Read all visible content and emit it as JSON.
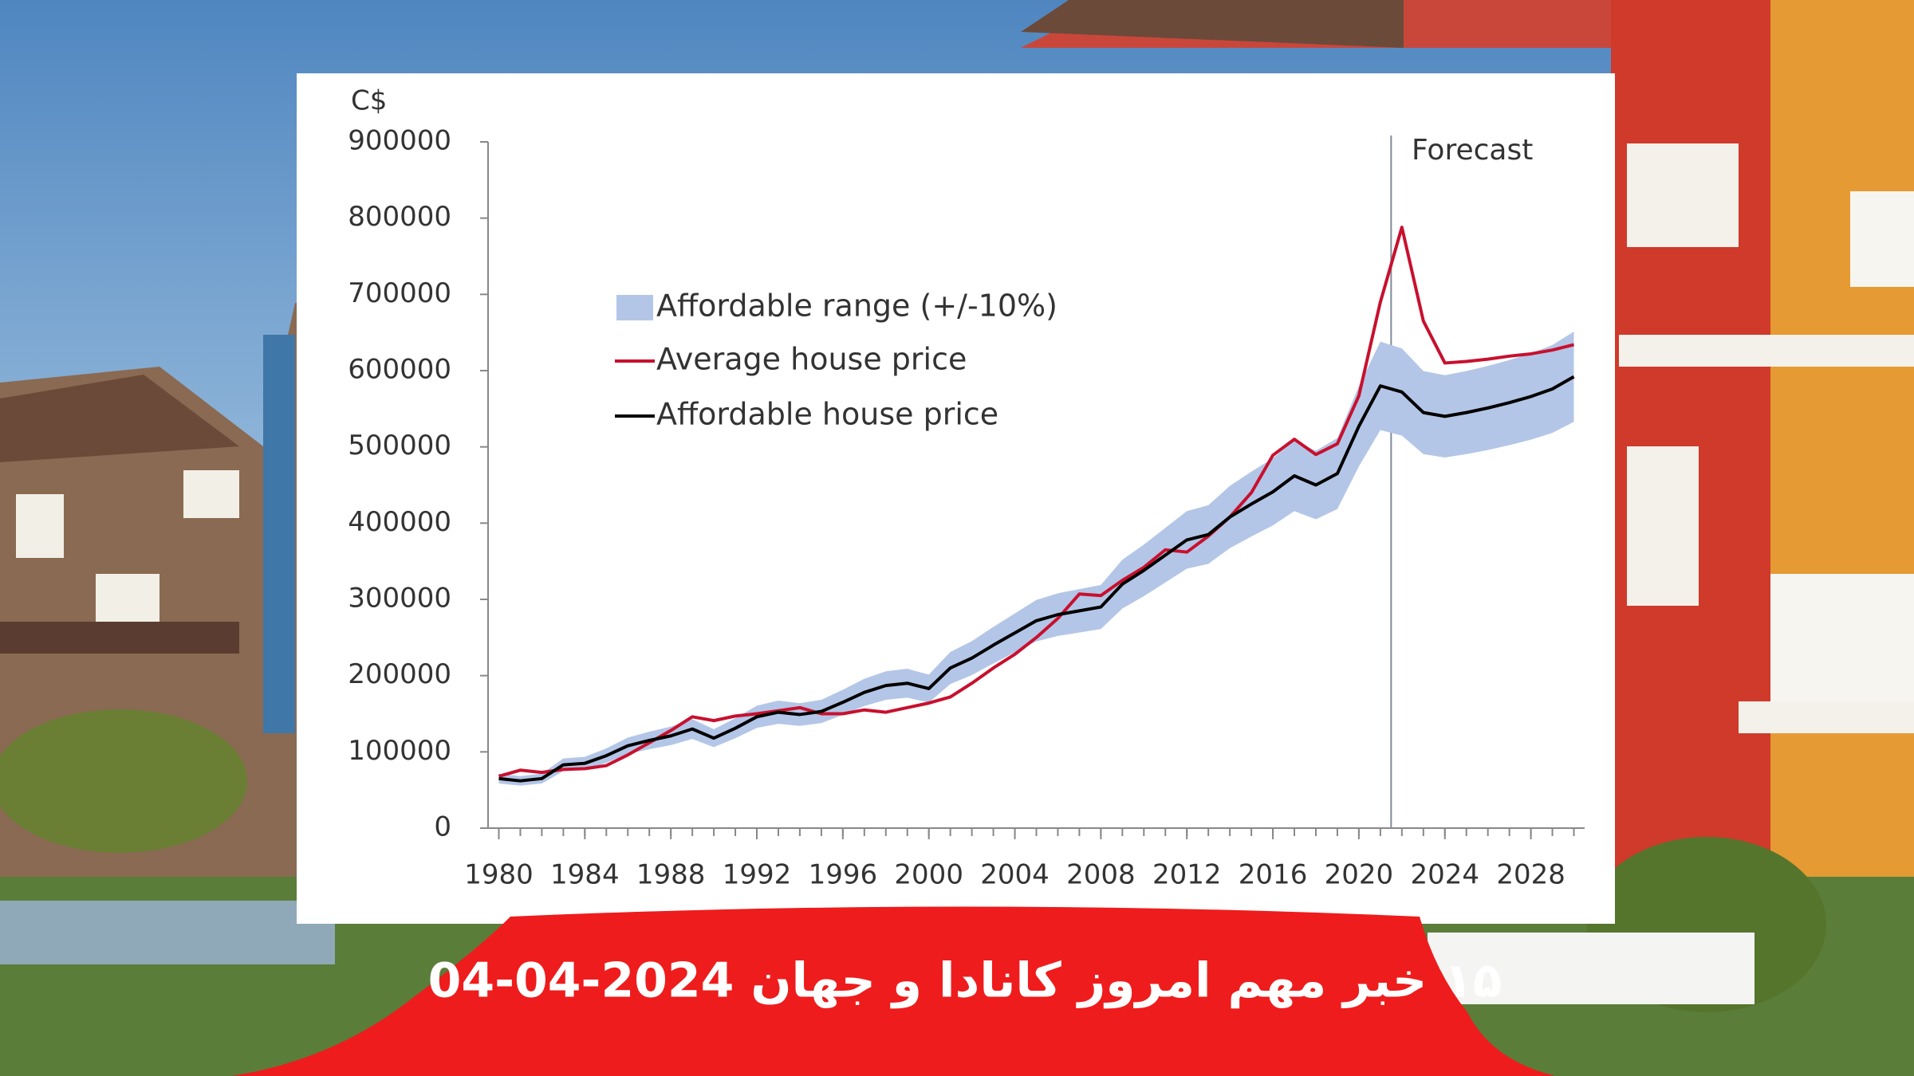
{
  "chart_data": {
    "type": "line",
    "y_axis_label": "C$",
    "annotation": "Forecast",
    "forecast_start": 2021.5,
    "x": [
      1980,
      1981,
      1982,
      1983,
      1984,
      1985,
      1986,
      1987,
      1988,
      1989,
      1990,
      1991,
      1992,
      1993,
      1994,
      1995,
      1996,
      1997,
      1998,
      1999,
      2000,
      2001,
      2002,
      2003,
      2004,
      2005,
      2006,
      2007,
      2008,
      2009,
      2010,
      2011,
      2012,
      2013,
      2014,
      2015,
      2016,
      2017,
      2018,
      2019,
      2020,
      2021,
      2022,
      2023,
      2024,
      2025,
      2026,
      2027,
      2028,
      2029,
      2030
    ],
    "series": [
      {
        "name": "Affordable range (+/-10%)",
        "color": "#b4c6e7",
        "low": [
          58500,
          55800,
          58500,
          74700,
          76500,
          85500,
          97200,
          103500,
          108900,
          117000,
          106200,
          117900,
          131400,
          136800,
          134100,
          137700,
          148500,
          160200,
          168300,
          171000,
          164700,
          189000,
          200700,
          216000,
          230400,
          244800,
          252000,
          256500,
          261000,
          288000,
          304200,
          322200,
          340200,
          346500,
          367200,
          382500,
          396900,
          415800,
          405000,
          418500,
          474300,
          522000,
          514800,
          490500,
          486000,
          490500,
          495900,
          502200,
          509400,
          518400,
          532800
        ],
        "high": [
          71500,
          68200,
          71500,
          91300,
          93500,
          104500,
          118800,
          126500,
          133100,
          143000,
          129800,
          144100,
          160600,
          167200,
          163900,
          168300,
          181500,
          195800,
          205700,
          209000,
          201300,
          231000,
          245300,
          264000,
          281600,
          299200,
          308000,
          313500,
          319000,
          352000,
          371800,
          393800,
          415800,
          423500,
          448800,
          467500,
          485100,
          508200,
          495000,
          511500,
          579700,
          638000,
          629200,
          599500,
          594000,
          599500,
          606100,
          613800,
          622600,
          633600,
          651200
        ]
      },
      {
        "name": "Average house price",
        "color": "#c8102e",
        "values": [
          68000,
          76000,
          73000,
          77000,
          78000,
          82000,
          96000,
          112000,
          128000,
          146000,
          141000,
          147000,
          150000,
          154000,
          158000,
          150000,
          150000,
          155000,
          152000,
          158000,
          164000,
          172000,
          190000,
          210000,
          228000,
          250000,
          275000,
          307000,
          305000,
          325000,
          342000,
          365000,
          362000,
          383000,
          408000,
          440000,
          489000,
          510000,
          490000,
          504000,
          567000,
          690000,
          788000,
          665000,
          610000,
          612000,
          615000,
          619000,
          622000,
          627000,
          634000
        ]
      },
      {
        "name": "Affordable house price",
        "color": "#000000",
        "values": [
          65000,
          62000,
          65000,
          83000,
          85000,
          95000,
          108000,
          115000,
          121000,
          130000,
          118000,
          131000,
          146000,
          152000,
          149000,
          153000,
          165000,
          178000,
          187000,
          190000,
          183000,
          210000,
          223000,
          240000,
          256000,
          272000,
          280000,
          285000,
          290000,
          320000,
          338000,
          358000,
          378000,
          385000,
          408000,
          425000,
          441000,
          462000,
          450000,
          465000,
          527000,
          580000,
          572000,
          545000,
          540000,
          545000,
          551000,
          558000,
          566000,
          576000,
          592000
        ]
      }
    ],
    "xlim": [
      1979.5,
      2030.5
    ],
    "xticks": [
      1980,
      1984,
      1988,
      1992,
      1996,
      2000,
      2004,
      2008,
      2012,
      2016,
      2020,
      2024,
      2028
    ],
    "ylim": [
      0,
      900000
    ],
    "yticks": [
      0,
      100000,
      200000,
      300000,
      400000,
      500000,
      600000,
      700000,
      800000,
      900000
    ],
    "grid": false
  },
  "banner": {
    "text": "۱۵ خبر مهم امروز کانادا و جهان 2024-04-04"
  }
}
